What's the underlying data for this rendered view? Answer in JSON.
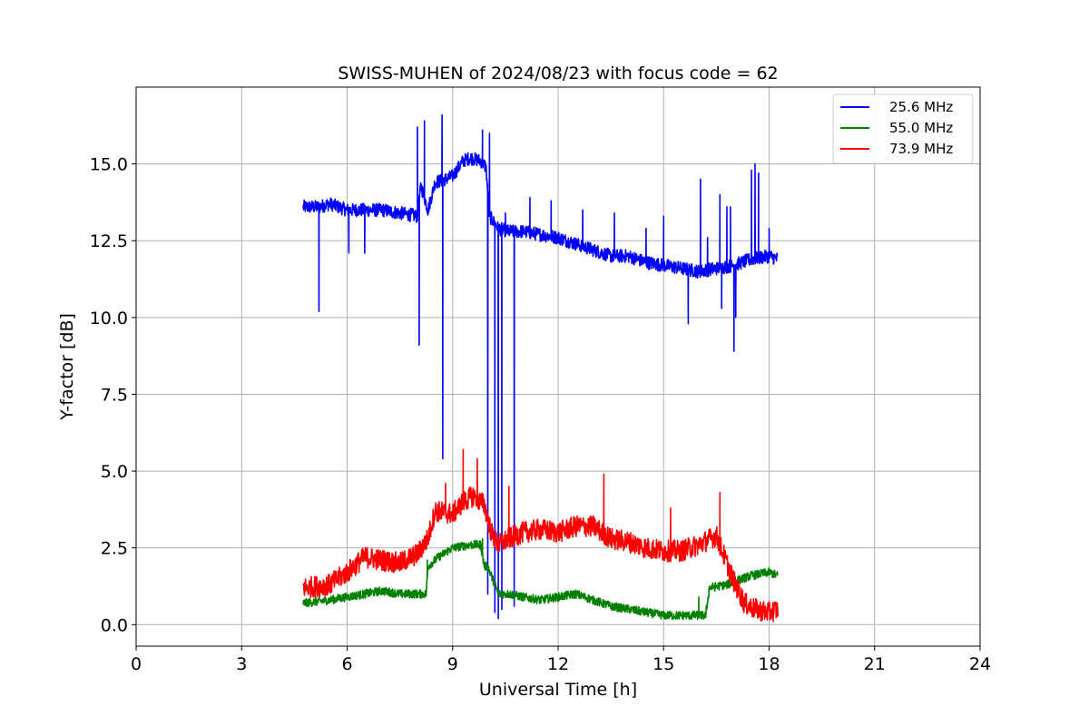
{
  "chart_data": {
    "type": "line",
    "title": "SWISS-MUHEN of 2024/08/23 with focus code = 62",
    "xlabel": "Universal Time [h]",
    "ylabel": "Y-factor [dB]",
    "xlim": [
      0,
      24
    ],
    "ylim": [
      -0.7,
      17.5
    ],
    "xticks": [
      0,
      3,
      6,
      9,
      12,
      15,
      18,
      21,
      24
    ],
    "xtick_labels": [
      "0",
      "3",
      "6",
      "9",
      "12",
      "15",
      "18",
      "21",
      "24"
    ],
    "yticks": [
      0,
      2.5,
      5,
      7.5,
      10,
      12.5,
      15
    ],
    "ytick_labels": [
      "0.0",
      "2.5",
      "5.0",
      "7.5",
      "10.0",
      "12.5",
      "15.0"
    ],
    "grid": true,
    "legend_position": "top-right",
    "series": [
      {
        "name": "25.6 MHz",
        "color": "#0000ff",
        "noise": 0.22,
        "x": [
          4.75,
          5.2,
          5.5,
          6.0,
          6.5,
          7.0,
          7.5,
          8.0,
          8.1,
          8.3,
          8.5,
          8.8,
          9.0,
          9.3,
          9.5,
          9.8,
          9.95,
          10.05,
          10.3,
          10.6,
          10.8,
          11.0,
          11.5,
          12.0,
          12.5,
          13.0,
          13.5,
          14.0,
          14.5,
          15.0,
          15.5,
          16.0,
          16.5,
          17.0,
          17.5,
          18.0,
          18.25
        ],
        "y": [
          13.6,
          13.6,
          13.7,
          13.5,
          13.5,
          13.5,
          13.4,
          13.3,
          14.3,
          13.5,
          14.4,
          14.5,
          14.6,
          15.1,
          15.2,
          15.1,
          14.9,
          13.3,
          12.9,
          12.8,
          12.8,
          12.8,
          12.7,
          12.6,
          12.4,
          12.2,
          12.0,
          12.0,
          11.8,
          11.7,
          11.6,
          11.5,
          11.6,
          11.7,
          11.9,
          12.0,
          11.9
        ],
        "spikes": [
          [
            5.2,
            10.2
          ],
          [
            6.05,
            12.1
          ],
          [
            6.5,
            12.1
          ],
          [
            8.0,
            16.2
          ],
          [
            8.05,
            9.1
          ],
          [
            8.2,
            16.4
          ],
          [
            8.7,
            16.6
          ],
          [
            8.72,
            5.4
          ],
          [
            9.85,
            16.1
          ],
          [
            10.0,
            1.0
          ],
          [
            10.05,
            16.0
          ],
          [
            10.2,
            0.4
          ],
          [
            10.3,
            0.2
          ],
          [
            10.4,
            0.5
          ],
          [
            10.5,
            13.4
          ],
          [
            10.75,
            0.6
          ],
          [
            11.2,
            13.9
          ],
          [
            11.8,
            13.8
          ],
          [
            12.7,
            13.5
          ],
          [
            13.6,
            13.4
          ],
          [
            14.5,
            12.9
          ],
          [
            15.0,
            13.3
          ],
          [
            15.7,
            9.8
          ],
          [
            16.05,
            14.5
          ],
          [
            16.25,
            12.6
          ],
          [
            16.6,
            14.0
          ],
          [
            16.65,
            10.3
          ],
          [
            16.8,
            13.6
          ],
          [
            16.9,
            13.6
          ],
          [
            17.0,
            8.9
          ],
          [
            17.05,
            10.0
          ],
          [
            17.5,
            14.8
          ],
          [
            17.6,
            15.0
          ],
          [
            17.7,
            14.7
          ],
          [
            18.0,
            12.9
          ]
        ]
      },
      {
        "name": "55.0 MHz",
        "color": "#008000",
        "noise": 0.14,
        "x": [
          4.75,
          5.5,
          6.0,
          6.5,
          7.0,
          7.5,
          8.0,
          8.25,
          8.3,
          8.6,
          9.0,
          9.5,
          9.8,
          9.9,
          10.0,
          10.3,
          10.6,
          11.0,
          11.5,
          12.0,
          12.5,
          13.0,
          13.5,
          14.0,
          14.5,
          15.0,
          15.5,
          16.0,
          16.2,
          16.3,
          16.8,
          17.0,
          17.5,
          18.0,
          18.25
        ],
        "y": [
          0.7,
          0.8,
          0.9,
          1.0,
          1.1,
          1.0,
          1.0,
          1.0,
          1.9,
          2.2,
          2.5,
          2.6,
          2.6,
          1.9,
          1.9,
          1.0,
          1.0,
          0.9,
          0.8,
          0.9,
          1.0,
          0.8,
          0.6,
          0.5,
          0.4,
          0.3,
          0.3,
          0.3,
          0.3,
          1.2,
          1.3,
          1.4,
          1.6,
          1.7,
          1.6
        ],
        "spikes": [
          [
            8.28,
            2.1
          ],
          [
            9.85,
            2.8
          ],
          [
            16.0,
            0.9
          ]
        ]
      },
      {
        "name": "73.9 MHz",
        "color": "#ff0000",
        "noise": 0.35,
        "x": [
          4.75,
          5.5,
          6.0,
          6.5,
          7.0,
          7.5,
          8.0,
          8.3,
          8.5,
          9.0,
          9.3,
          9.6,
          9.9,
          10.1,
          10.3,
          10.6,
          11.0,
          11.5,
          12.0,
          12.5,
          13.0,
          13.5,
          14.0,
          14.5,
          15.0,
          15.5,
          16.0,
          16.5,
          16.8,
          17.0,
          17.3,
          17.6,
          18.0,
          18.25
        ],
        "y": [
          1.2,
          1.3,
          1.7,
          2.2,
          2.1,
          2.0,
          2.3,
          2.8,
          3.7,
          3.6,
          4.0,
          4.2,
          3.9,
          3.0,
          2.6,
          2.8,
          3.0,
          3.1,
          3.0,
          3.2,
          3.2,
          2.8,
          2.7,
          2.5,
          2.4,
          2.4,
          2.6,
          2.9,
          2.0,
          1.4,
          0.7,
          0.5,
          0.4,
          0.5
        ],
        "spikes": [
          [
            8.8,
            4.6
          ],
          [
            9.3,
            5.7
          ],
          [
            9.7,
            5.4
          ],
          [
            10.6,
            4.5
          ],
          [
            13.3,
            4.9
          ],
          [
            15.2,
            3.8
          ],
          [
            16.6,
            4.3
          ]
        ]
      }
    ]
  }
}
